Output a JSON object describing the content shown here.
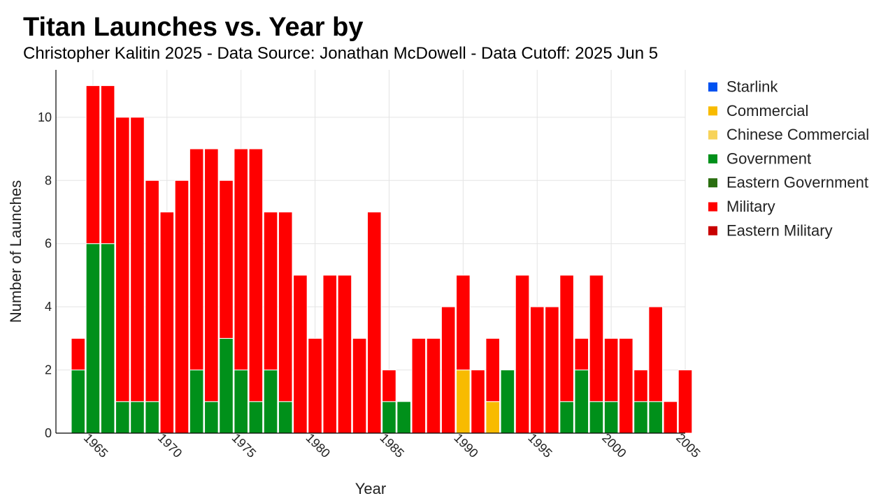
{
  "chart_data": {
    "type": "bar",
    "stacked": true,
    "title": "Titan Launches vs. Year by",
    "subtitle": "Christopher Kalitin 2025 - Data Source: Jonathan McDowell - Data Cutoff: 2025 Jun 5",
    "xlabel": "Year",
    "ylabel": "Number of Launches",
    "xlim": [
      1962.5,
      2005
    ],
    "ylim": [
      0,
      11.5
    ],
    "x_ticks": [
      1965,
      1970,
      1975,
      1980,
      1985,
      1990,
      1995,
      2000,
      2005
    ],
    "y_ticks": [
      0,
      2,
      4,
      6,
      8,
      10
    ],
    "grid": true,
    "legend_position": "right",
    "x": [
      1964,
      1965,
      1966,
      1967,
      1968,
      1969,
      1970,
      1971,
      1972,
      1973,
      1974,
      1975,
      1976,
      1977,
      1978,
      1979,
      1980,
      1981,
      1982,
      1983,
      1984,
      1985,
      1986,
      1987,
      1988,
      1989,
      1990,
      1991,
      1992,
      1993,
      1994,
      1995,
      1996,
      1997,
      1998,
      1999,
      2000,
      2001,
      2002,
      2003,
      2004,
      2005
    ],
    "series": [
      {
        "name": "Starlink",
        "color": "#0052f0",
        "values": [
          0,
          0,
          0,
          0,
          0,
          0,
          0,
          0,
          0,
          0,
          0,
          0,
          0,
          0,
          0,
          0,
          0,
          0,
          0,
          0,
          0,
          0,
          0,
          0,
          0,
          0,
          0,
          0,
          0,
          0,
          0,
          0,
          0,
          0,
          0,
          0,
          0,
          0,
          0,
          0,
          0,
          0
        ]
      },
      {
        "name": "Commercial",
        "color": "#f8bb00",
        "values": [
          0,
          0,
          0,
          0,
          0,
          0,
          0,
          0,
          0,
          0,
          0,
          0,
          0,
          0,
          0,
          0,
          0,
          0,
          0,
          0,
          0,
          0,
          0,
          0,
          0,
          0,
          2,
          0,
          1,
          0,
          0,
          0,
          0,
          0,
          0,
          0,
          0,
          0,
          0,
          0,
          0,
          0
        ]
      },
      {
        "name": "Chinese Commercial",
        "color": "#f7d35a",
        "values": [
          0,
          0,
          0,
          0,
          0,
          0,
          0,
          0,
          0,
          0,
          0,
          0,
          0,
          0,
          0,
          0,
          0,
          0,
          0,
          0,
          0,
          0,
          0,
          0,
          0,
          0,
          0,
          0,
          0,
          0,
          0,
          0,
          0,
          0,
          0,
          0,
          0,
          0,
          0,
          0,
          0,
          0
        ]
      },
      {
        "name": "Government",
        "color": "#00901a",
        "values": [
          2,
          6,
          6,
          1,
          1,
          1,
          0,
          0,
          2,
          1,
          3,
          2,
          1,
          2,
          1,
          0,
          0,
          0,
          0,
          0,
          0,
          1,
          1,
          0,
          0,
          0,
          0,
          0,
          0,
          2,
          0,
          0,
          0,
          1,
          2,
          1,
          1,
          0,
          1,
          1,
          0,
          0
        ]
      },
      {
        "name": "Eastern Government",
        "color": "#2a6e10",
        "values": [
          0,
          0,
          0,
          0,
          0,
          0,
          0,
          0,
          0,
          0,
          0,
          0,
          0,
          0,
          0,
          0,
          0,
          0,
          0,
          0,
          0,
          0,
          0,
          0,
          0,
          0,
          0,
          0,
          0,
          0,
          0,
          0,
          0,
          0,
          0,
          0,
          0,
          0,
          0,
          0,
          0,
          0
        ]
      },
      {
        "name": "Military",
        "color": "#ff0000",
        "values": [
          1,
          5,
          5,
          9,
          9,
          7,
          7,
          8,
          7,
          8,
          5,
          7,
          8,
          5,
          6,
          5,
          3,
          5,
          5,
          3,
          7,
          1,
          0,
          3,
          3,
          4,
          3,
          2,
          2,
          0,
          5,
          4,
          4,
          4,
          1,
          4,
          2,
          3,
          1,
          3,
          1,
          2
        ]
      },
      {
        "name": "Eastern Military",
        "color": "#c80000",
        "values": [
          0,
          0,
          0,
          0,
          0,
          0,
          0,
          0,
          0,
          0,
          0,
          0,
          0,
          0,
          0,
          0,
          0,
          0,
          0,
          0,
          0,
          0,
          0,
          0,
          0,
          0,
          0,
          0,
          0,
          0,
          0,
          0,
          0,
          0,
          0,
          0,
          0,
          0,
          0,
          0,
          0,
          0
        ]
      }
    ]
  }
}
